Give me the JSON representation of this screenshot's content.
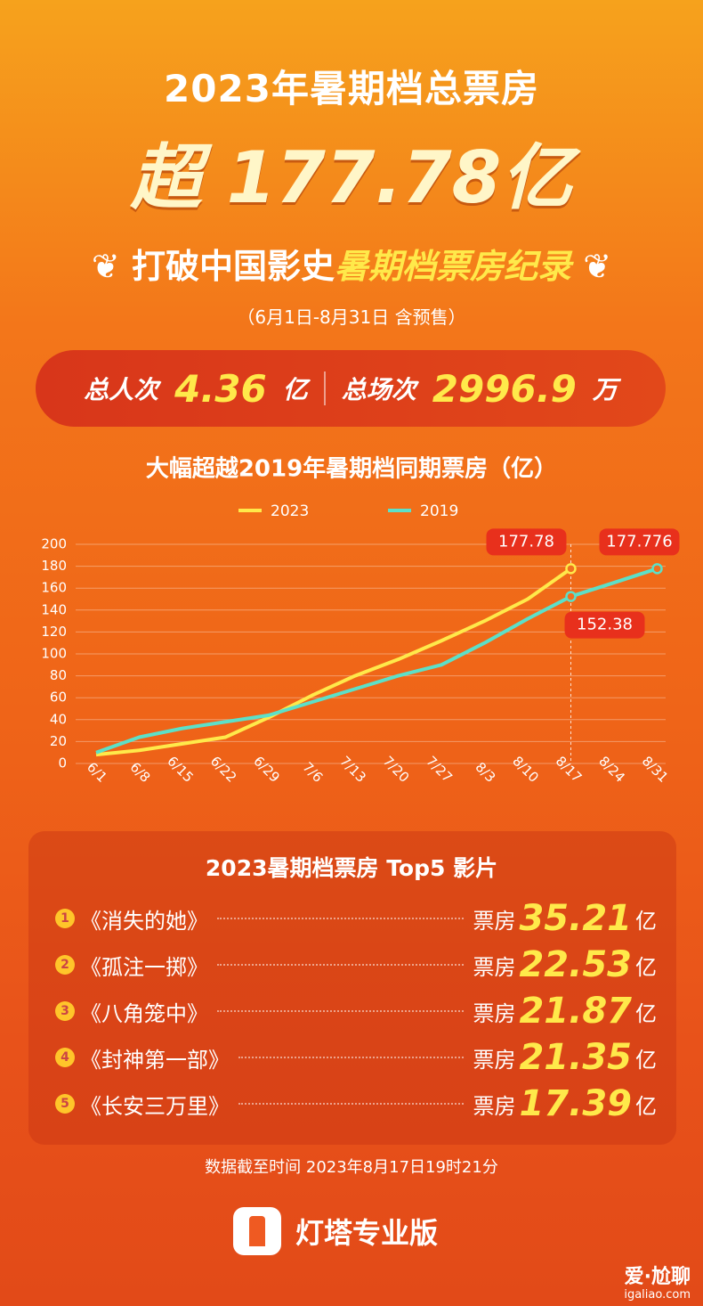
{
  "header": {
    "title": "2023年暑期档总票房",
    "prefix": "超",
    "amount": "177.78",
    "unit": "亿",
    "record_a": "打破中国影史",
    "record_b": "暑期档票房纪录",
    "period": "（6月1日-8月31日 含预售）"
  },
  "stats": [
    {
      "label": "总人次",
      "value": "4.36",
      "unit": "亿"
    },
    {
      "label": "总场次",
      "value": "2996.9",
      "unit": "万"
    }
  ],
  "chart_data": {
    "type": "line",
    "title": "大幅超越2019年暑期档同期票房（亿）",
    "categories": [
      "6/1",
      "6/8",
      "6/15",
      "6/22",
      "6/29",
      "7/6",
      "7/13",
      "7/20",
      "7/27",
      "8/3",
      "8/10",
      "8/17",
      "8/24",
      "8/31"
    ],
    "series": [
      {
        "name": "2023",
        "color": "#ffe94a",
        "values": [
          8,
          12,
          18,
          24,
          42,
          62,
          80,
          95,
          112,
          130,
          150,
          177.78,
          null,
          null
        ]
      },
      {
        "name": "2019",
        "color": "#5ce0c8",
        "values": [
          10,
          24,
          32,
          38,
          44,
          56,
          68,
          80,
          90,
          110,
          132,
          152.38,
          165,
          177.776
        ]
      }
    ],
    "labeled_points": [
      [
        0,
        11
      ],
      [
        1,
        11
      ],
      [
        1,
        13
      ]
    ],
    "ylim": [
      0,
      200
    ],
    "yticks": [
      0,
      20,
      40,
      60,
      80,
      100,
      120,
      140,
      160,
      180,
      200
    ],
    "grid": true,
    "legend": "top"
  },
  "top5": {
    "title": "2023暑期档票房 Top5 影片",
    "rows": [
      {
        "rank": "1",
        "name": "《消失的她》",
        "label": "票房",
        "value": "35.21",
        "unit": "亿"
      },
      {
        "rank": "2",
        "name": "《孤注一掷》",
        "label": "票房",
        "value": "22.53",
        "unit": "亿"
      },
      {
        "rank": "3",
        "name": "《八角笼中》",
        "label": "票房",
        "value": "21.87",
        "unit": "亿"
      },
      {
        "rank": "4",
        "name": "《封神第一部》",
        "label": "票房",
        "value": "21.35",
        "unit": "亿"
      },
      {
        "rank": "5",
        "name": "《长安三万里》",
        "label": "票房",
        "value": "17.39",
        "unit": "亿"
      }
    ]
  },
  "footer": {
    "note": "数据截至时间 2023年8月17日19时21分",
    "brand": "灯塔专业版",
    "watermark": "爱·尬聊",
    "watermark_url": "igaliao.com"
  }
}
